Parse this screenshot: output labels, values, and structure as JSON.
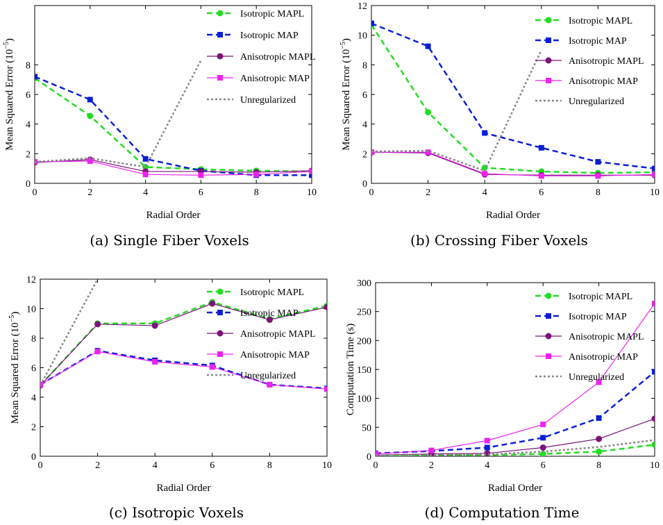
{
  "series_styles": [
    {
      "name": "Isotropic MAPL",
      "color": "#22dd22",
      "marker": "circle",
      "dash": "8,5",
      "width": 2.5
    },
    {
      "name": "Isotropic MAP",
      "color": "#0a1ed6",
      "marker": "square",
      "dash": "8,5",
      "width": 2.5
    },
    {
      "name": "Anisotropic MAPL",
      "color": "#7a1478",
      "marker": "circle",
      "dash": "",
      "width": 1.2
    },
    {
      "name": "Anisotropic MAP",
      "color": "#ee22ee",
      "marker": "square",
      "dash": "",
      "width": 1.2
    },
    {
      "name": "Unregularized",
      "color": "#888888",
      "marker": "none",
      "dash": "3,3",
      "width": 2.5
    }
  ],
  "chart_data": [
    {
      "type": "line",
      "caption": "(a) Single Fiber Voxels",
      "xlabel": "Radial Order",
      "ylabel": "Mean Squared Error (10",
      "ylabel_exp": "−5",
      "xlim": [
        0,
        10
      ],
      "ylim": [
        0,
        12
      ],
      "xticks": [
        0,
        2,
        4,
        6,
        8,
        10
      ],
      "yticks": [
        0,
        2,
        4,
        6,
        8
      ],
      "x": [
        0,
        2,
        4,
        6,
        8,
        10
      ],
      "series": [
        {
          "name": "Isotropic MAPL",
          "values": [
            7.1,
            4.55,
            1.1,
            0.95,
            0.85,
            0.8
          ]
        },
        {
          "name": "Isotropic MAP",
          "values": [
            7.2,
            5.65,
            1.65,
            0.85,
            0.55,
            0.55
          ]
        },
        {
          "name": "Anisotropic MAPL",
          "values": [
            1.4,
            1.6,
            0.8,
            0.8,
            0.75,
            0.85
          ]
        },
        {
          "name": "Anisotropic MAP",
          "values": [
            1.45,
            1.5,
            0.6,
            0.55,
            0.6,
            0.8
          ]
        },
        {
          "name": "Unregularized",
          "values": [
            1.45,
            1.7,
            1.1,
            8.3,
            null,
            null
          ]
        }
      ]
    },
    {
      "type": "line",
      "caption": "(b) Crossing Fiber Voxels",
      "xlabel": "Radial Order",
      "ylabel": "Mean Squared Error (10",
      "ylabel_exp": "−5",
      "xlim": [
        0,
        10
      ],
      "ylim": [
        0,
        12
      ],
      "xticks": [
        0,
        2,
        4,
        6,
        8,
        10
      ],
      "yticks": [
        0,
        2,
        4,
        6,
        8,
        10,
        12
      ],
      "x": [
        0,
        2,
        4,
        6,
        8,
        10
      ],
      "series": [
        {
          "name": "Isotropic MAPL",
          "values": [
            10.7,
            4.8,
            1.05,
            0.8,
            0.7,
            0.75
          ]
        },
        {
          "name": "Isotropic MAP",
          "values": [
            10.8,
            9.25,
            3.4,
            2.4,
            1.45,
            1.0
          ]
        },
        {
          "name": "Anisotropic MAPL",
          "values": [
            2.1,
            2.05,
            0.6,
            0.55,
            0.55,
            0.55
          ]
        },
        {
          "name": "Anisotropic MAP",
          "values": [
            2.1,
            2.1,
            0.65,
            0.5,
            0.5,
            0.6
          ]
        },
        {
          "name": "Unregularized",
          "values": [
            2.15,
            2.2,
            0.85,
            9.0,
            null,
            null
          ]
        }
      ]
    },
    {
      "type": "line",
      "caption": "(c) Isotropic Voxels",
      "xlabel": "Radial Order",
      "ylabel": "Mean Squared Error (10",
      "ylabel_exp": "−5",
      "xlim": [
        0,
        10
      ],
      "ylim": [
        0,
        12
      ],
      "xticks": [
        0,
        2,
        4,
        6,
        8,
        10
      ],
      "yticks": [
        0,
        2,
        4,
        6,
        8,
        10,
        12
      ],
      "x": [
        0,
        2,
        4,
        6,
        8,
        10
      ],
      "series": [
        {
          "name": "Isotropic MAPL",
          "values": [
            4.8,
            9.0,
            9.0,
            10.45,
            9.3,
            10.2
          ]
        },
        {
          "name": "Isotropic MAP",
          "values": [
            4.85,
            7.15,
            6.5,
            6.15,
            4.85,
            4.6
          ]
        },
        {
          "name": "Anisotropic MAPL",
          "values": [
            4.8,
            8.95,
            8.85,
            10.35,
            9.25,
            10.1
          ]
        },
        {
          "name": "Anisotropic MAP",
          "values": [
            4.85,
            7.1,
            6.4,
            6.05,
            4.85,
            4.55
          ]
        },
        {
          "name": "Unregularized",
          "values": [
            4.8,
            12.0,
            null,
            null,
            null,
            null
          ]
        }
      ]
    },
    {
      "type": "line",
      "caption": "(d) Computation Time",
      "xlabel": "Radial Order",
      "ylabel": "Computation Time (s)",
      "ylabel_exp": "",
      "xlim": [
        0,
        10
      ],
      "ylim": [
        0,
        300
      ],
      "xticks": [
        0,
        2,
        4,
        6,
        8,
        10
      ],
      "yticks": [
        0,
        50,
        100,
        150,
        200,
        250,
        300
      ],
      "x": [
        0,
        2,
        4,
        6,
        8,
        10
      ],
      "series": [
        {
          "name": "Isotropic MAPL",
          "values": [
            1,
            2,
            2,
            4,
            8,
            20
          ]
        },
        {
          "name": "Isotropic MAP",
          "values": [
            5,
            9,
            15,
            32,
            66,
            146
          ]
        },
        {
          "name": "Anisotropic MAPL",
          "values": [
            2,
            4,
            5,
            15,
            30,
            65
          ]
        },
        {
          "name": "Anisotropic MAP",
          "values": [
            4,
            10,
            27,
            55,
            128,
            264
          ]
        },
        {
          "name": "Unregularized",
          "values": [
            1,
            2,
            3,
            8,
            16,
            28
          ]
        }
      ]
    }
  ]
}
